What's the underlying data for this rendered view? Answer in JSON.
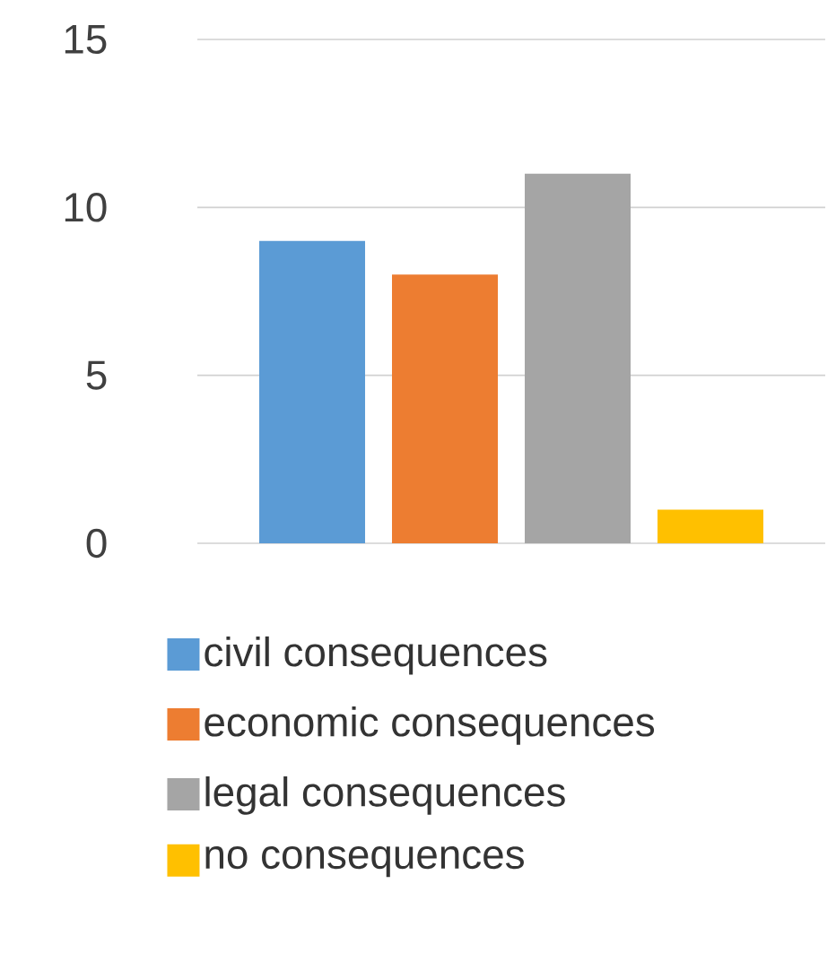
{
  "chart_data": {
    "type": "bar",
    "categories": [
      null
    ],
    "series": [
      {
        "name": "civil consequences",
        "color": "#5b9bd5",
        "values": [
          9
        ]
      },
      {
        "name": "economic consequences",
        "color": "#ed7d31",
        "values": [
          8
        ]
      },
      {
        "name": "legal consequences",
        "color": "#a5a5a5",
        "values": [
          11
        ]
      },
      {
        "name": "no consequences",
        "color": "#ffc000",
        "values": [
          1
        ]
      }
    ],
    "ylim": [
      0,
      15
    ],
    "yticks": [
      0,
      5,
      10,
      15
    ],
    "grid": "y",
    "legend": "bottom"
  }
}
